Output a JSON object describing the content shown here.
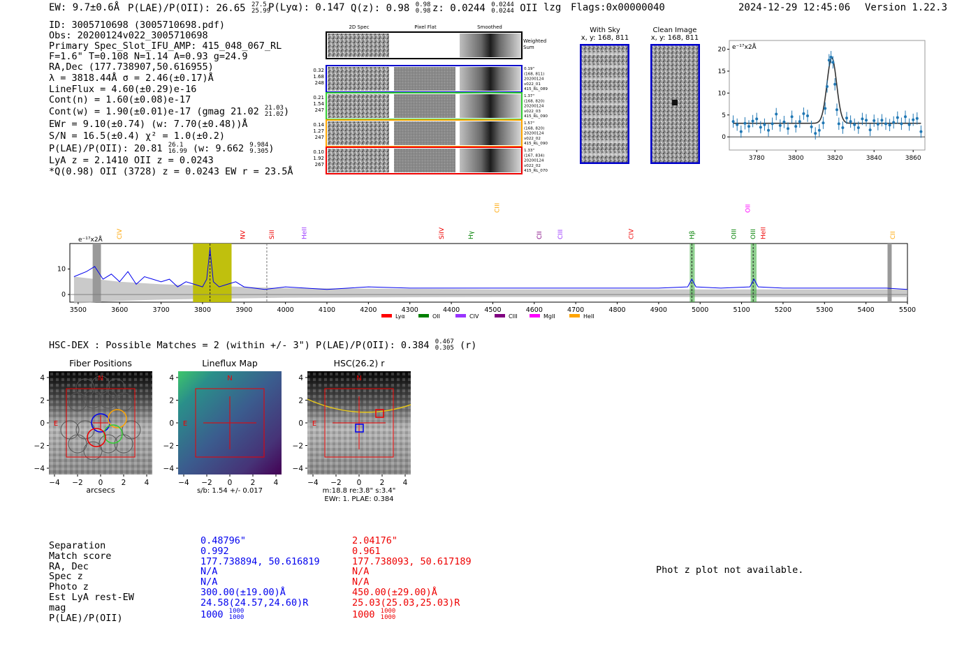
{
  "header": {
    "ew": "EW: 9.7±0.6Å",
    "plae_label": "P(LAE)/P(OII): 26.65",
    "plae_hi": "27.5",
    "plae_lo": "25.99",
    "plya": "P(Lyα): 0.147",
    "qz_label": "Q(z): 0.98",
    "qz_hi": "0.98",
    "qz_lo": "0.98",
    "z_label": "z: 0.0244",
    "z_hi": "0.0244",
    "z_lo": "0.0244",
    "z_line": "OII",
    "lzg": "lzg",
    "flags": "Flags:0x00000040",
    "datetime": "2024-12-29 12:45:06",
    "version": "Version 1.22.3"
  },
  "info": {
    "id": "ID: 3005710698 (3005710698.pdf)",
    "obs": "Obs: 20200124v022_3005710698",
    "primary": "Primary Spec_Slot_IFU_AMP: 415_048_067_RL",
    "fparams": "F=1.6\"  T=0.108  N=1.14  A=0.93  g=24.9",
    "radec": "RA,Dec (177.738907,50.616955)",
    "lambda": "λ = 3818.44Å   σ = 2.46(±0.17)Å",
    "lineflux": "LineFlux = 4.60(±0.29)e-16",
    "contn": "Cont(n) = 1.60(±0.08)e-17",
    "contw_pre": "Cont(w) = 1.90(±0.01)e-17 (gmag 21.02",
    "contw_hi": "21.03",
    "contw_lo": "21.02",
    "contw_post": ")",
    "ewr": "EWr = 9.10(±0.74) (w: 7.70(±0.48))Å",
    "sn": "S/N = 16.5(±0.4)  χ² = 1.0(±0.2)",
    "plae_pre": "P(LAE)/P(OII): 20.81",
    "plae_hi": "26.1",
    "plae_lo": "16.99",
    "plae_mid": " (w: 9.662",
    "plae_w_hi": "9.984",
    "plae_w_lo": "9.305",
    "plae_post": ")",
    "lya": "LyA z = 2.1410  OII z = 0.0243",
    "q": "*Q(0.98) OII (3728) z = 0.0243  EW r = 23.5Å"
  },
  "cutouts": {
    "col_2d": "2D Spec",
    "col_flat": "Pixel Flat",
    "col_smooth": "Smoothed",
    "weighted": [
      "Weighted",
      "Sum"
    ],
    "fibers": [
      {
        "left": [
          "0.32",
          "1.68",
          "248"
        ],
        "right": [
          "0.19\"",
          "(168, 811)",
          "20200124",
          "v022_01",
          "415_RL_089"
        ],
        "color": "#0000cc"
      },
      {
        "left": [
          "0.21",
          "1.54",
          "247"
        ],
        "right": [
          "1.37\"",
          "(168, 820)",
          "20200124",
          "v022_03",
          "415_RL_090"
        ],
        "color": "#33cc33"
      },
      {
        "left": [
          "0.14",
          "1.27",
          "247"
        ],
        "right": [
          "1.57\"",
          "(168, 820)",
          "20200124",
          "v022_02",
          "415_RL_090"
        ],
        "color": "#ffa500"
      },
      {
        "left": [
          "0.10",
          "1.92",
          "267"
        ],
        "right": [
          "1.33\"",
          "(167, 834)",
          "20200124",
          "v022_02",
          "415_RL_070"
        ],
        "color": "#ee0000"
      }
    ],
    "with_sky": [
      "With Sky",
      "x, y: 168, 811"
    ],
    "clean": [
      "Clean Image",
      "x, y: 168, 811"
    ]
  },
  "zoom_chart": {
    "unit": "e⁻¹⁷x2Å",
    "xticks": [
      "3780",
      "3800",
      "3820",
      "3840",
      "3860"
    ],
    "yticks": [
      "0",
      "5",
      "10",
      "15",
      "20"
    ]
  },
  "chart_data": [
    {
      "type": "line",
      "title": "",
      "xlabel": "",
      "ylabel": "e⁻¹⁷x2Å",
      "xlim": [
        3766,
        3866
      ],
      "ylim": [
        -3,
        22
      ],
      "series": [
        {
          "name": "flux",
          "x": [
            3768,
            3770,
            3772,
            3774,
            3776,
            3778,
            3780,
            3782,
            3784,
            3786,
            3788,
            3790,
            3792,
            3794,
            3796,
            3798,
            3800,
            3802,
            3804,
            3806,
            3808,
            3810,
            3812,
            3814,
            3815,
            3816,
            3817,
            3818,
            3819,
            3820,
            3821,
            3822,
            3824,
            3826,
            3828,
            3830,
            3832,
            3834,
            3836,
            3838,
            3840,
            3842,
            3844,
            3846,
            3848,
            3850,
            3852,
            3854,
            3856,
            3858,
            3860,
            3862,
            3864
          ],
          "y": [
            3.5,
            2.8,
            1.2,
            3.1,
            2.4,
            3.6,
            4.1,
            2.2,
            2.8,
            1.5,
            3.0,
            5.2,
            2.6,
            3.4,
            1.9,
            4.6,
            2.4,
            3.5,
            5.3,
            4.8,
            2.3,
            0.8,
            1.5,
            3.2,
            6.5,
            11.5,
            17.5,
            18.2,
            17.0,
            12.0,
            6.2,
            3.0,
            2.1,
            4.3,
            3.5,
            2.8,
            2.1,
            4.1,
            3.8,
            1.6,
            3.7,
            2.9,
            3.8,
            3.0,
            2.7,
            3.3,
            4.4,
            3.0,
            4.6,
            2.8,
            3.9,
            4.2,
            1.2
          ]
        },
        {
          "name": "fit",
          "model": "gaussian",
          "center": 3818.4,
          "sigma": 2.46,
          "amplitude": 15.0,
          "baseline": 3.1
        }
      ]
    },
    {
      "type": "line",
      "title": "",
      "xlabel": "",
      "ylabel": "e⁻¹⁷x2Å",
      "xlim": [
        3480,
        5500
      ],
      "ylim": [
        -3,
        20
      ],
      "xticks": [
        3500,
        3600,
        3700,
        3800,
        3900,
        4000,
        4100,
        4200,
        4300,
        4400,
        4500,
        4600,
        4700,
        4800,
        4900,
        5000,
        5100,
        5200,
        5300,
        5400,
        5500
      ],
      "yticks": [
        0,
        10
      ],
      "series": [
        {
          "name": "spectrum",
          "x": [
            3490,
            3520,
            3540,
            3560,
            3580,
            3600,
            3620,
            3640,
            3660,
            3680,
            3700,
            3720,
            3740,
            3760,
            3780,
            3800,
            3810,
            3818,
            3826,
            3840,
            3860,
            3880,
            3900,
            3950,
            4000,
            4100,
            4200,
            4300,
            4400,
            4500,
            4600,
            4700,
            4800,
            4900,
            4970,
            4980,
            4990,
            5050,
            5120,
            5130,
            5140,
            5200,
            5300,
            5400,
            5450,
            5500
          ],
          "y": [
            7,
            9,
            11,
            6,
            8,
            5,
            9,
            4,
            7,
            6,
            5,
            6,
            3,
            5,
            4,
            3,
            6,
            18,
            5,
            3,
            4,
            5,
            3,
            2,
            3,
            2,
            3,
            2.5,
            2.5,
            2.5,
            2.5,
            2.5,
            2.5,
            2.5,
            3,
            6,
            3,
            2.5,
            3,
            6,
            3,
            2.5,
            2.5,
            2.5,
            2.5,
            2
          ]
        },
        {
          "name": "noise",
          "x": [
            3490,
            3600,
            3700,
            3800,
            3900,
            4000,
            4500,
            5000,
            5500
          ],
          "y": [
            7,
            5,
            4,
            3.5,
            3,
            2.5,
            2,
            2,
            2
          ]
        }
      ],
      "lines": [
        {
          "name": "CIV",
          "wave": 3600,
          "color": "#ffa500",
          "row": 2
        },
        {
          "name": "NV",
          "wave": 3897,
          "color": "#ee0000",
          "row": 2
        },
        {
          "name": "SiII",
          "wave": 3967,
          "color": "#ee0000",
          "row": 2
        },
        {
          "name": "HeII",
          "wave": 4045,
          "color": "#9933ff",
          "row": 2
        },
        {
          "name": "CIII",
          "wave": 4510,
          "color": "#ffa500",
          "row": 1
        },
        {
          "name": "SiIV",
          "wave": 4376,
          "color": "#ee0000",
          "row": 2
        },
        {
          "name": "Hγ",
          "wave": 4447,
          "color": "#008000",
          "row": 2
        },
        {
          "name": "CII",
          "wave": 4612,
          "color": "#800080",
          "row": 2
        },
        {
          "name": "CIII",
          "wave": 4663,
          "color": "#9933ff",
          "row": 2
        },
        {
          "name": "CIV",
          "wave": 4834,
          "color": "#ee0000",
          "row": 2
        },
        {
          "name": "Hβ",
          "wave": 4980,
          "color": "#008000",
          "row": 2
        },
        {
          "name": "OII",
          "wave": 5115,
          "color": "#ff00ff",
          "row": 1
        },
        {
          "name": "OIII",
          "wave": 5081,
          "color": "#008000",
          "row": 2
        },
        {
          "name": "OIII",
          "wave": 5128,
          "color": "#008000",
          "row": 2
        },
        {
          "name": "HeII",
          "wave": 5152,
          "color": "#ee0000",
          "row": 2
        },
        {
          "name": "CII",
          "wave": 5465,
          "color": "#ffa500",
          "row": 2
        }
      ],
      "legend": [
        {
          "name": "Lyα",
          "color": "#ff0000"
        },
        {
          "name": "OII",
          "color": "#008000"
        },
        {
          "name": "CIV",
          "color": "#9933ff"
        },
        {
          "name": "CIII",
          "color": "#800080"
        },
        {
          "name": "MgII",
          "color": "#ff00ff"
        },
        {
          "name": "HeII",
          "color": "#ffa500"
        }
      ]
    }
  ],
  "hsc": {
    "heading_pre": "HSC-DEX : Possible Matches = 2 (within +/- 3\")  P(LAE)/P(OII): 0.384",
    "heading_hi": "0.467",
    "heading_lo": "0.305",
    "heading_post": "(r)",
    "panels": [
      {
        "title": "Fiber Positions",
        "caption": [
          "arcsecs"
        ]
      },
      {
        "title": "Lineflux Map",
        "caption": [
          "s/b: 1.54 +/- 0.017"
        ]
      },
      {
        "title": "HSC(26.2) r",
        "caption": [
          "m:18.8  re:3.8\"  s:3.4\"",
          "EWr: 1. PLAE: 0.384"
        ]
      }
    ],
    "axis_ticks": [
      "4",
      "2",
      "0",
      "−2",
      "−4"
    ],
    "x_ticks": [
      "−4",
      "−2",
      "0",
      "2",
      "4"
    ],
    "n_label": "N",
    "e_label": "E"
  },
  "matches": {
    "labels": [
      "Separation",
      "Match score",
      "RA, Dec",
      "Spec z",
      "Photo z",
      "Est LyA rest-EW",
      "mag",
      "P(LAE)/P(OII)"
    ],
    "blue": [
      "0.48796\"",
      "0.992",
      "177.738894, 50.616819",
      "N/A",
      "N/A",
      "300.00(±19.00)Å",
      "24.58(24.57,24.60)R",
      "1000"
    ],
    "blue_plae_hi": "1000",
    "blue_plae_lo": "1000",
    "red": [
      "2.04176\"",
      "0.961",
      "177.738093, 50.617189",
      "N/A",
      "N/A",
      "450.00(±29.00)Å",
      "25.03(25.03,25.03)R",
      "1000"
    ],
    "red_plae_hi": "1000",
    "red_plae_lo": "1000",
    "photz_msg": "Phot z plot not available."
  }
}
